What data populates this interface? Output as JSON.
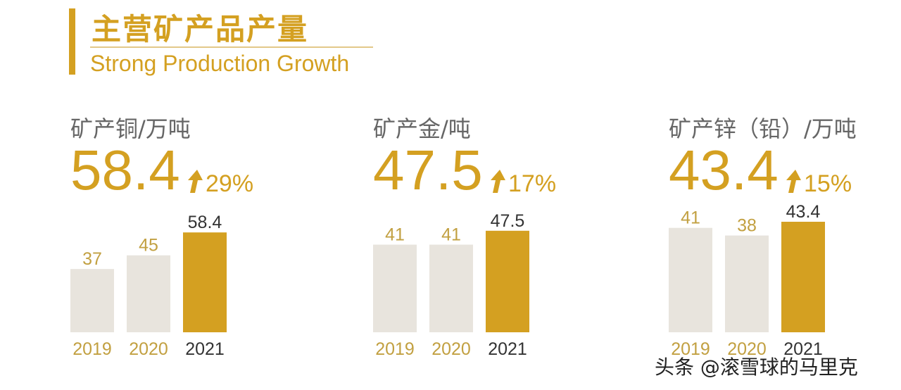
{
  "header": {
    "title_cn": "主营矿产品产量",
    "title_en": "Strong Production Growth"
  },
  "colors": {
    "accent": "#d4a021",
    "bar_past": "#e8e4dd",
    "bar_current": "#d4a021",
    "label_past": "#c2a041",
    "label_current": "#333333",
    "metric_label": "#666666"
  },
  "watermark": "头条 @滚雪球的马里克",
  "chart_data": [
    {
      "type": "bar",
      "metric_label": "矿产铜/万吨",
      "headline_value": "58.4",
      "growth": "29%",
      "categories": [
        "2019",
        "2020",
        "2021"
      ],
      "values": [
        37,
        45,
        58.4
      ],
      "value_labels": [
        "37",
        "45",
        "58.4"
      ],
      "ylim": [
        0,
        70
      ]
    },
    {
      "type": "bar",
      "metric_label": "矿产金/吨",
      "headline_value": "47.5",
      "growth": "17%",
      "categories": [
        "2019",
        "2020",
        "2021"
      ],
      "values": [
        41,
        41,
        47.5
      ],
      "value_labels": [
        "41",
        "41",
        "47.5"
      ],
      "ylim": [
        0,
        56
      ]
    },
    {
      "type": "bar",
      "metric_label": "矿产锌（铅）/万吨",
      "headline_value": "43.4",
      "growth": "15%",
      "categories": [
        "2019",
        "2020",
        "2021"
      ],
      "values": [
        41,
        38,
        43.4
      ],
      "value_labels": [
        "41",
        "38",
        "43.4"
      ],
      "ylim": [
        0,
        47
      ]
    }
  ]
}
